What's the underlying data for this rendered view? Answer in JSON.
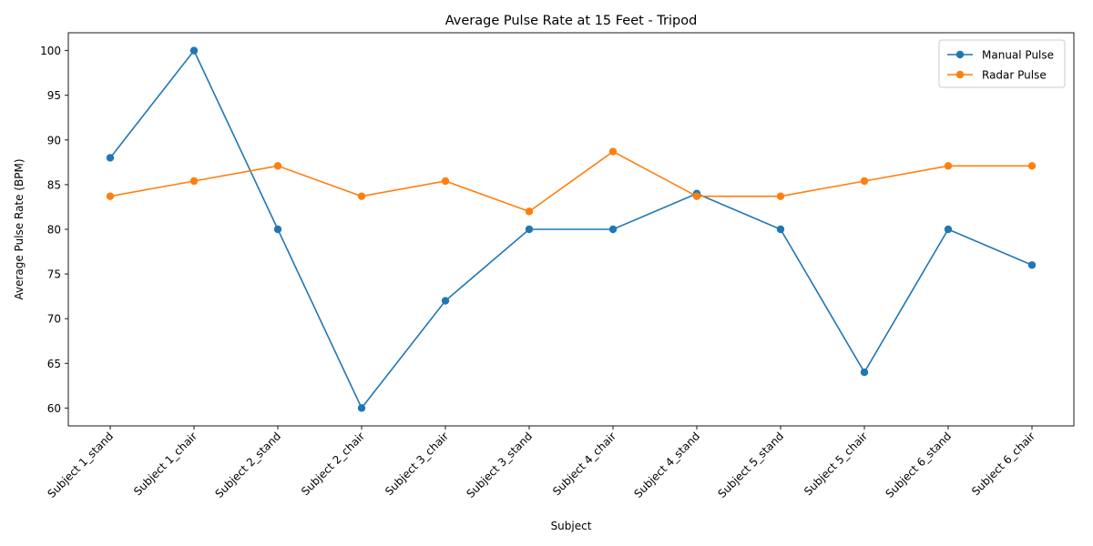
{
  "chart_data": {
    "type": "line",
    "title": "Average Pulse Rate at 15 Feet - Tripod",
    "xlabel": "Subject",
    "ylabel": "Average Pulse Rate (BPM)",
    "categories": [
      "Subject 1_stand",
      "Subject 1_chair",
      "Subject 2_stand",
      "Subject 2_chair",
      "Subject 3_chair",
      "Subject 3_stand",
      "Subject 4_chair",
      "Subject 4_stand",
      "Subject 5_stand",
      "Subject 5_chair",
      "Subject 6_stand",
      "Subject 6_chair"
    ],
    "ylim": [
      58,
      102
    ],
    "yticks": [
      60,
      65,
      70,
      75,
      80,
      85,
      90,
      95,
      100
    ],
    "series": [
      {
        "name": "Manual Pulse",
        "color": "#1f77b4",
        "values": [
          88,
          100,
          80,
          60,
          72,
          80,
          80,
          84,
          80,
          64,
          80,
          76
        ]
      },
      {
        "name": "Radar Pulse",
        "color": "#ff7f0e",
        "values": [
          83.7,
          85.4,
          87.1,
          83.7,
          85.4,
          82.0,
          88.7,
          83.7,
          83.7,
          85.4,
          87.1,
          87.1
        ]
      }
    ],
    "legend_position": "top-right",
    "grid": false
  }
}
